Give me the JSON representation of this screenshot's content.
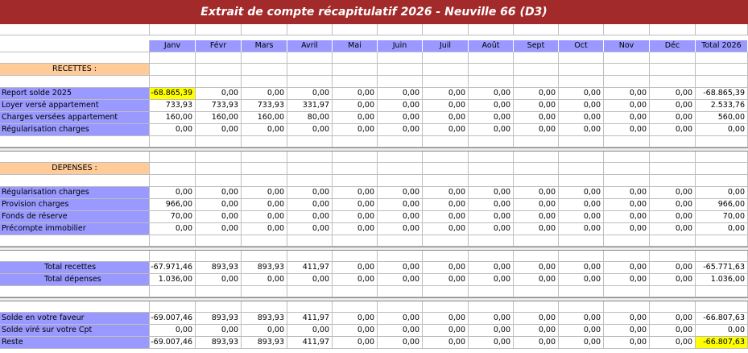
{
  "title": "Extrait de compte récapitulatif 2026 - Neuville 66 (D3)",
  "months": [
    "Janv",
    "Févr",
    "Mars",
    "Avril",
    "Mai",
    "Juin",
    "Juil",
    "Août",
    "Sept",
    "Oct",
    "Nov",
    "Déc"
  ],
  "total_header": "Total  2026",
  "sections": {
    "recettes_label": "RECETTES :",
    "depenses_label": "DEPENSES :"
  },
  "recettes": [
    {
      "label": "Report solde 2025",
      "values": [
        "-68.865,39",
        "0,00",
        "0,00",
        "0,00",
        "0,00",
        "0,00",
        "0,00",
        "0,00",
        "0,00",
        "0,00",
        "0,00",
        "0,00"
      ],
      "total": "-68.865,39"
    },
    {
      "label": "Loyer versé appartement",
      "values": [
        "733,93",
        "733,93",
        "733,93",
        "331,97",
        "0,00",
        "0,00",
        "0,00",
        "0,00",
        "0,00",
        "0,00",
        "0,00",
        "0,00"
      ],
      "total": "2.533,76"
    },
    {
      "label": "Charges versées appartement",
      "values": [
        "160,00",
        "160,00",
        "160,00",
        "80,00",
        "0,00",
        "0,00",
        "0,00",
        "0,00",
        "0,00",
        "0,00",
        "0,00",
        "0,00"
      ],
      "total": "560,00"
    },
    {
      "label": "Régularisation charges",
      "values": [
        "0,00",
        "0,00",
        "0,00",
        "0,00",
        "0,00",
        "0,00",
        "0,00",
        "0,00",
        "0,00",
        "0,00",
        "0,00",
        "0,00"
      ],
      "total": "0,00"
    }
  ],
  "depenses": [
    {
      "label": "Régularisation charges",
      "values": [
        "0,00",
        "0,00",
        "0,00",
        "0,00",
        "0,00",
        "0,00",
        "0,00",
        "0,00",
        "0,00",
        "0,00",
        "0,00",
        "0,00"
      ],
      "total": "0,00"
    },
    {
      "label": "Provision charges",
      "values": [
        "966,00",
        "0,00",
        "0,00",
        "0,00",
        "0,00",
        "0,00",
        "0,00",
        "0,00",
        "0,00",
        "0,00",
        "0,00",
        "0,00"
      ],
      "total": "966,00"
    },
    {
      "label": "Fonds de réserve",
      "values": [
        "70,00",
        "0,00",
        "0,00",
        "0,00",
        "0,00",
        "0,00",
        "0,00",
        "0,00",
        "0,00",
        "0,00",
        "0,00",
        "0,00"
      ],
      "total": "70,00"
    },
    {
      "label": "Précompte immobilier",
      "values": [
        "0,00",
        "0,00",
        "0,00",
        "0,00",
        "0,00",
        "0,00",
        "0,00",
        "0,00",
        "0,00",
        "0,00",
        "0,00",
        "0,00"
      ],
      "total": "0,00"
    }
  ],
  "totaux": [
    {
      "label": "Total recettes",
      "values": [
        "-67.971,46",
        "893,93",
        "893,93",
        "411,97",
        "0,00",
        "0,00",
        "0,00",
        "0,00",
        "0,00",
        "0,00",
        "0,00",
        "0,00"
      ],
      "total": "-65.771,63"
    },
    {
      "label": "Total dépenses",
      "values": [
        "1.036,00",
        "0,00",
        "0,00",
        "0,00",
        "0,00",
        "0,00",
        "0,00",
        "0,00",
        "0,00",
        "0,00",
        "0,00",
        "0,00"
      ],
      "total": "1.036,00"
    }
  ],
  "soldes": [
    {
      "label": "Solde en votre faveur",
      "values": [
        "-69.007,46",
        "893,93",
        "893,93",
        "411,97",
        "0,00",
        "0,00",
        "0,00",
        "0,00",
        "0,00",
        "0,00",
        "0,00",
        "0,00"
      ],
      "total": "-66.807,63"
    },
    {
      "label": "Solde viré sur votre Cpt",
      "values": [
        "0,00",
        "0,00",
        "0,00",
        "0,00",
        "0,00",
        "0,00",
        "0,00",
        "0,00",
        "0,00",
        "0,00",
        "0,00",
        "0,00"
      ],
      "total": "0,00"
    },
    {
      "label": "Reste",
      "values": [
        "-69.007,46",
        "893,93",
        "893,93",
        "411,97",
        "0,00",
        "0,00",
        "0,00",
        "0,00",
        "0,00",
        "0,00",
        "0,00",
        "0,00"
      ],
      "total": "-66.807,63"
    }
  ],
  "colors": {
    "banner": "#a32a2a",
    "header_blue": "#9999ff",
    "section_peach": "#ffcc99",
    "highlight_yellow": "#ffff00"
  }
}
